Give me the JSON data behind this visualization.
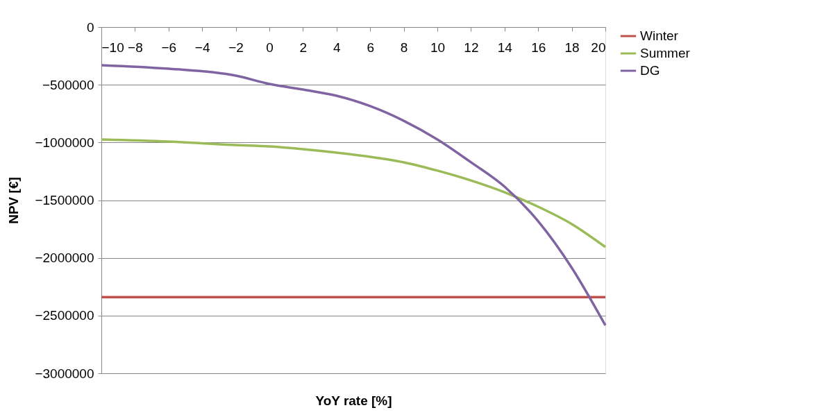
{
  "chart_data": {
    "type": "line",
    "xlabel": "YoY rate [%]",
    "ylabel": "NPV [€]",
    "x": [
      -10,
      -6,
      -2,
      0,
      2,
      4,
      6,
      8,
      10,
      12,
      14,
      16,
      18,
      20
    ],
    "series": [
      {
        "name": "Winter",
        "color": "#c0504d",
        "values": [
          -2340000,
          -2340000,
          -2340000,
          -2340000,
          -2340000,
          -2340000,
          -2340000,
          -2340000,
          -2340000,
          -2340000,
          -2340000,
          -2340000,
          -2340000,
          -2340000
        ]
      },
      {
        "name": "Summer",
        "color": "#9bbb59",
        "values": [
          -974000,
          -992000,
          -1022000,
          -1034000,
          -1058000,
          -1088000,
          -1124000,
          -1172000,
          -1244000,
          -1329000,
          -1431000,
          -1557000,
          -1707000,
          -1906000
        ]
      },
      {
        "name": "DG",
        "color": "#8064a2",
        "values": [
          -330000,
          -361000,
          -421000,
          -493000,
          -541000,
          -595000,
          -685000,
          -812000,
          -974000,
          -1172000,
          -1383000,
          -1683000,
          -2086000,
          -2585000
        ]
      }
    ],
    "xlim": [
      -10,
      20
    ],
    "xticks": [
      -10,
      -8,
      -6,
      -4,
      -2,
      0,
      2,
      4,
      6,
      8,
      10,
      12,
      14,
      16,
      18,
      20
    ],
    "ylim": [
      -3000000,
      0
    ],
    "yticks": [
      -3000000,
      -2500000,
      -2000000,
      -1500000,
      -1000000,
      -500000,
      0
    ],
    "grid": "y",
    "legend": "right",
    "marker": "none",
    "line_style": "solid"
  }
}
